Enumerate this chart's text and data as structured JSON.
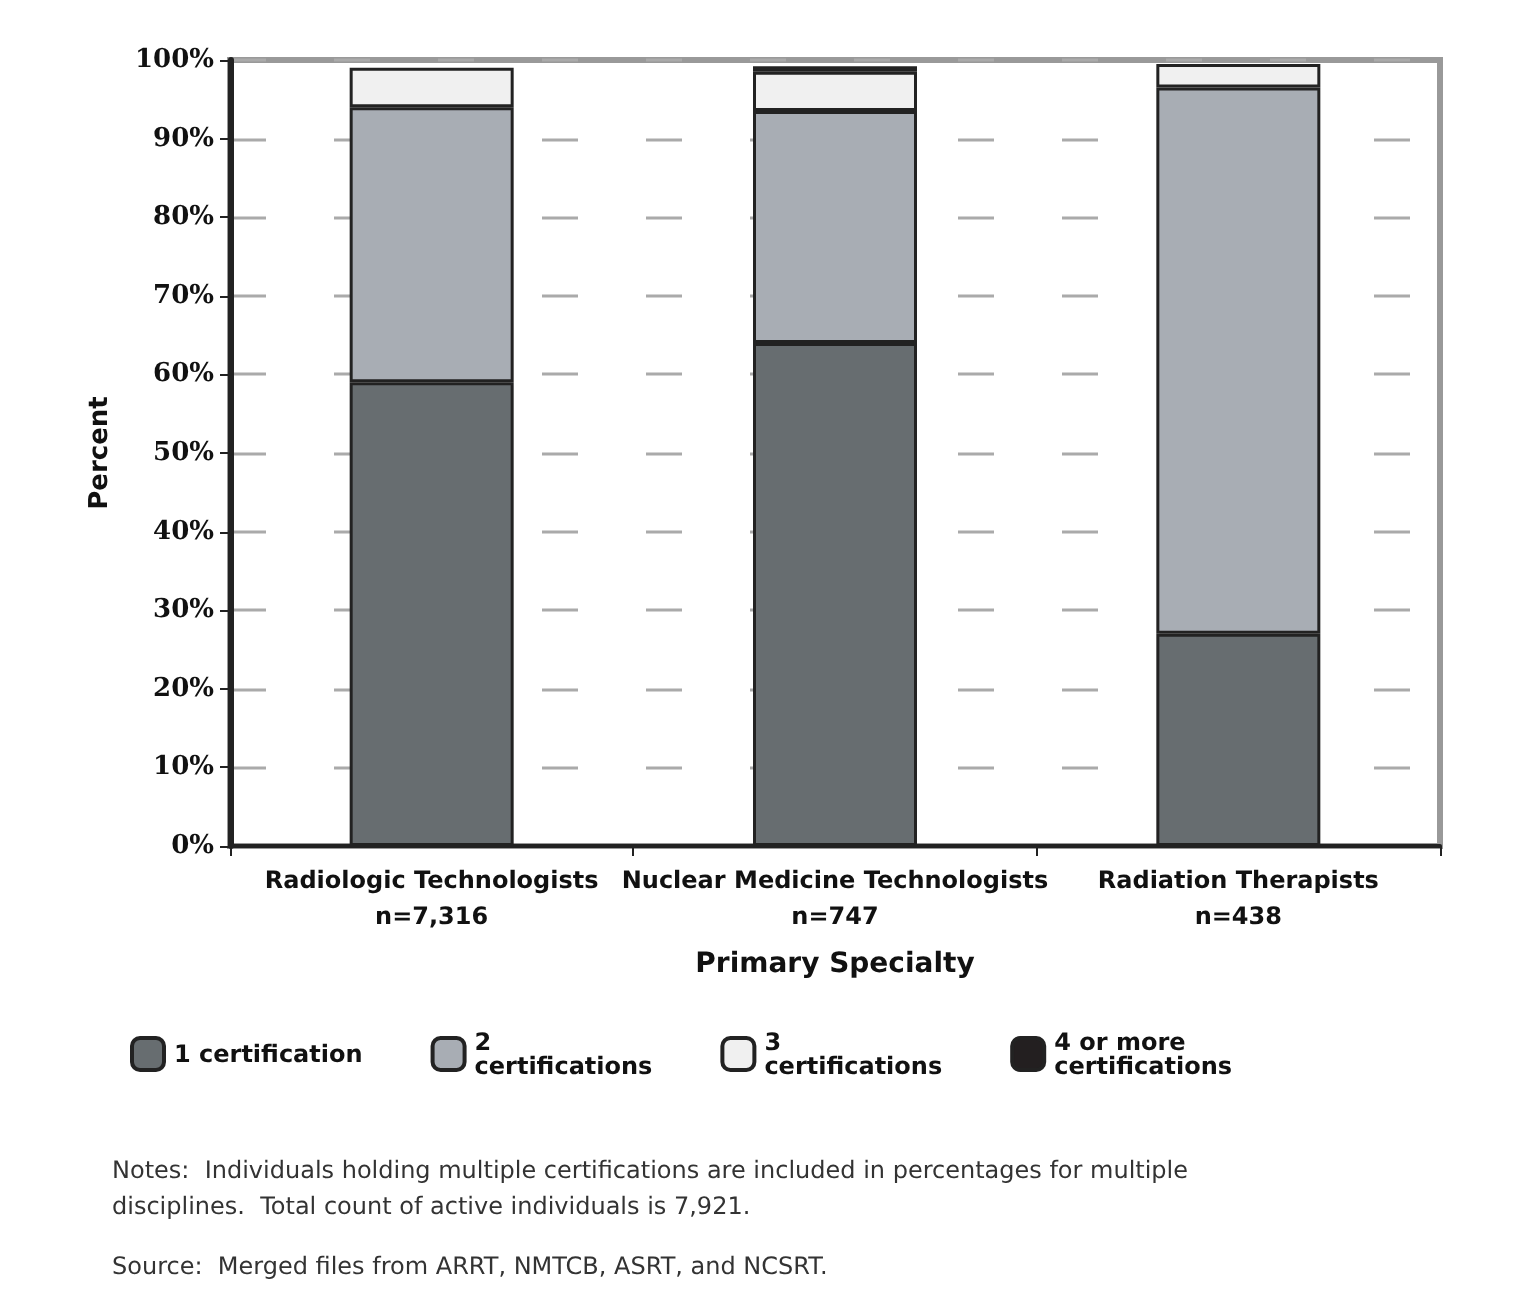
{
  "chart_data": {
    "type": "bar",
    "stacked": true,
    "categories": [
      "Radiologic Technologists\nn=7,316",
      "Nuclear Medicine Technologists\nn=747",
      "Radiation Therapists\nn=438"
    ],
    "xlabel": "Primary Specialty",
    "ylabel": "Percent",
    "series": [
      {
        "name": "1 certification",
        "color": "#676d70",
        "values": [
          59,
          64,
          27
        ]
      },
      {
        "name": "2 certifications",
        "color": "#a8adb4",
        "values": [
          35,
          29.5,
          69.5
        ]
      },
      {
        "name": "3 certifications",
        "color": "#f0f0f0",
        "values": [
          5,
          5,
          3
        ]
      },
      {
        "name": "4 or more certifications",
        "color": "#231f20",
        "values": [
          null,
          0.7,
          null
        ]
      }
    ],
    "ylim": [
      0,
      100
    ],
    "yticks": [
      {
        "value": 0,
        "label": "0%"
      },
      {
        "value": 10,
        "label": "10%"
      },
      {
        "value": 20,
        "label": "20%"
      },
      {
        "value": 30,
        "label": "30%"
      },
      {
        "value": 40,
        "label": "40%"
      },
      {
        "value": 50,
        "label": "50%"
      },
      {
        "value": 60,
        "label": "60%"
      },
      {
        "value": 70,
        "label": "70%"
      },
      {
        "value": 80,
        "label": "80%"
      },
      {
        "value": 90,
        "label": "90%"
      },
      {
        "value": 100,
        "label": "100%"
      }
    ],
    "grid": "y",
    "legend": "bottom",
    "annotations": [
      "Notes:  Individuals holding multiple certifications are included in percentages for multiple disciplines.  Total count of active individuals is 7,921.",
      "Source:  Merged files from ARRT, NMTCB, ASRT, and NCSRT."
    ]
  }
}
